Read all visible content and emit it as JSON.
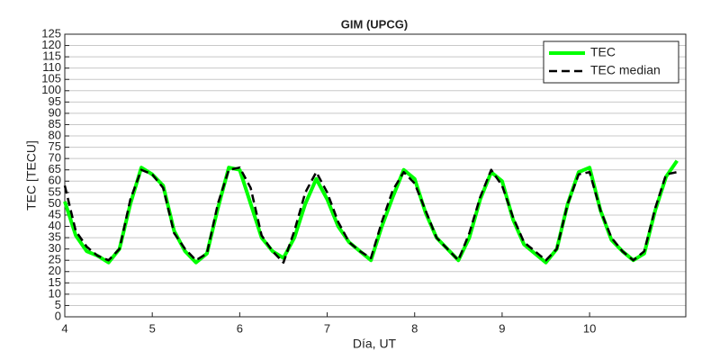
{
  "chart_data": {
    "type": "line",
    "title": "GIM (UPCG)",
    "x_label": "Día, UT",
    "y_label": "TEC [TECU]",
    "x": [
      4,
      4.125,
      4.25,
      4.375,
      4.5,
      4.625,
      4.75,
      4.875,
      5,
      5.125,
      5.25,
      5.375,
      5.5,
      5.625,
      5.75,
      5.875,
      6,
      6.125,
      6.25,
      6.375,
      6.5,
      6.625,
      6.75,
      6.875,
      7,
      7.125,
      7.25,
      7.375,
      7.5,
      7.625,
      7.75,
      7.875,
      8,
      8.125,
      8.25,
      8.375,
      8.5,
      8.625,
      8.75,
      8.875,
      9,
      9.125,
      9.25,
      9.375,
      9.5,
      9.625,
      9.75,
      9.875,
      10,
      10.125,
      10.25,
      10.375,
      10.5,
      10.625,
      10.75,
      10.875,
      11
    ],
    "series": [
      {
        "name": "TEC",
        "color": "#00ff00",
        "dash": false,
        "values": [
          51,
          36,
          29,
          27,
          24,
          30,
          50,
          66,
          63,
          58,
          38,
          29,
          24,
          28,
          48,
          66,
          65,
          50,
          35,
          29,
          26,
          35,
          50,
          61,
          52,
          40,
          33,
          29,
          25,
          40,
          53,
          65,
          61,
          46,
          35,
          30,
          25,
          35,
          52,
          64,
          60,
          43,
          32,
          28,
          24,
          30,
          50,
          64,
          66,
          47,
          34,
          29,
          25,
          28,
          47,
          62,
          69
        ]
      },
      {
        "name": "TEC median",
        "color": "#000000",
        "dash": true,
        "values": [
          58,
          38,
          31,
          27,
          25,
          30,
          52,
          65,
          63,
          57,
          37,
          30,
          25,
          28,
          50,
          65,
          66,
          57,
          36,
          29,
          24,
          38,
          55,
          64,
          55,
          42,
          33,
          29,
          26,
          42,
          56,
          64,
          59,
          47,
          35,
          30,
          25,
          37,
          53,
          65,
          58,
          44,
          33,
          29,
          25,
          30,
          50,
          63,
          64,
          47,
          35,
          29,
          25,
          29,
          48,
          63,
          64
        ]
      }
    ],
    "xlim": [
      4,
      11.1
    ],
    "xticks": [
      4,
      5,
      6,
      7,
      8,
      9,
      10
    ],
    "ylim": [
      0,
      125
    ],
    "yticks": [
      0,
      5,
      10,
      15,
      20,
      25,
      30,
      35,
      40,
      45,
      50,
      55,
      60,
      65,
      70,
      75,
      80,
      85,
      90,
      95,
      100,
      105,
      110,
      115,
      120,
      125
    ],
    "grid": true,
    "legend": "top-right"
  }
}
